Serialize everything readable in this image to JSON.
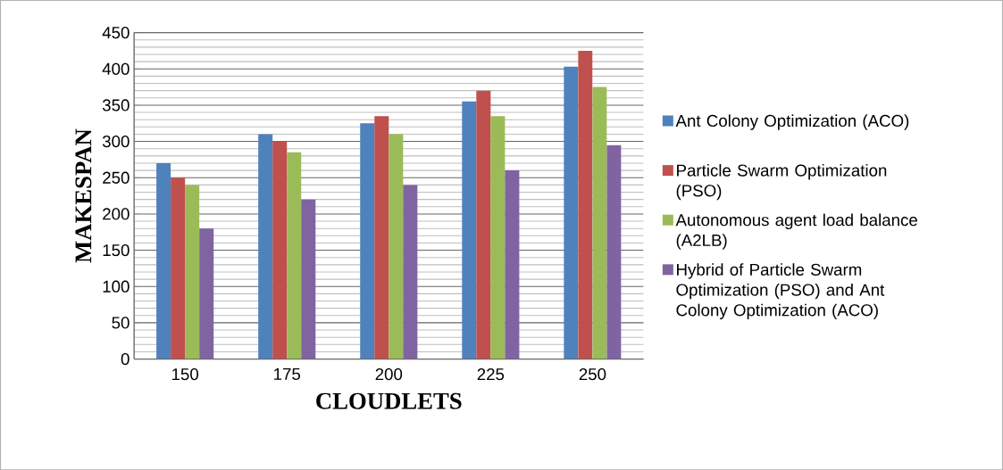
{
  "chart_data": {
    "type": "bar",
    "xlabel": "CLOUDLETS",
    "ylabel": "MAKESPAN",
    "categories": [
      "150",
      "175",
      "200",
      "225",
      "250"
    ],
    "series": [
      {
        "name": "Ant Colony Optimization (ACO)",
        "color": "#4f81bd",
        "values": [
          270,
          310,
          325,
          355,
          403
        ]
      },
      {
        "name": "Particle Swarm Optimization (PSO)",
        "color": "#c0504d",
        "values": [
          250,
          300,
          335,
          370,
          425
        ]
      },
      {
        "name": "Autonomous agent load balance (A2LB)",
        "color": "#9bbb59",
        "values": [
          240,
          285,
          310,
          335,
          375
        ]
      },
      {
        "name": "Hybrid of Particle Swarm Optimization (PSO) and Ant Colony Optimization (ACO)",
        "color": "#8064a2",
        "values": [
          180,
          220,
          240,
          260,
          295
        ]
      }
    ],
    "ylim": [
      0,
      450
    ],
    "yticks": [
      0,
      50,
      100,
      150,
      200,
      250,
      300,
      350,
      400,
      450
    ],
    "grid": "y",
    "legend": "right"
  }
}
